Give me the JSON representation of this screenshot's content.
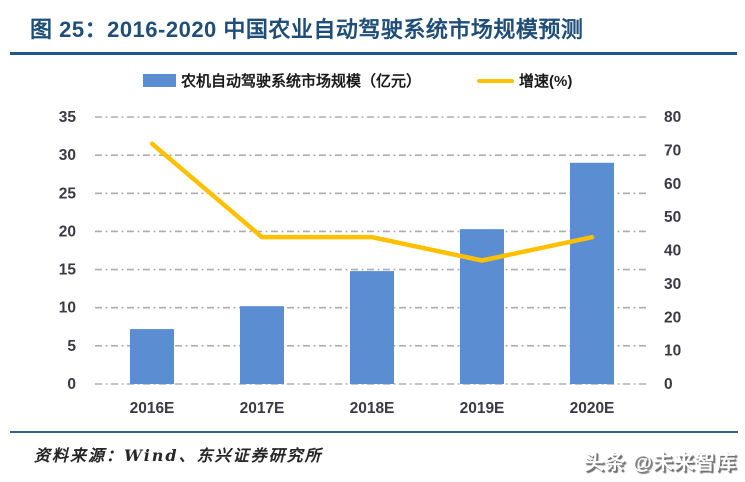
{
  "header": {
    "title": "图 25：2016-2020 中国农业自动驾驶系统市场规模预测"
  },
  "legend": {
    "series1_label": "农机自动驾驶系统市场规模（亿元）",
    "series2_label": "增速(%)"
  },
  "chart_data": {
    "type": "bar",
    "subtype": "bar+line combo, dual axis",
    "categories": [
      "2016E",
      "2017E",
      "2018E",
      "2019E",
      "2020E"
    ],
    "series": [
      {
        "name": "农机自动驾驶系统市场规模（亿元）",
        "type": "bar",
        "axis": "left",
        "color": "#5B8DD3",
        "values": [
          7.2,
          10.2,
          14.8,
          20.3,
          29.0
        ]
      },
      {
        "name": "增速(%)",
        "type": "line",
        "axis": "right",
        "color": "#FFC000",
        "values": [
          72,
          44,
          44,
          37,
          44
        ]
      }
    ],
    "left_axis": {
      "min": 0,
      "max": 35,
      "step": 5,
      "ticks": [
        0,
        5,
        10,
        15,
        20,
        25,
        30,
        35
      ]
    },
    "right_axis": {
      "min": 0,
      "max": 80,
      "step": 10,
      "ticks": [
        0,
        10,
        20,
        30,
        40,
        50,
        60,
        70,
        80
      ]
    },
    "grid": "horizontal dash-dot gray lines",
    "legend_position": "top",
    "title": "2016-2020 中国农业自动驾驶系统市场规模预测",
    "xlabel": "",
    "ylabel_left": "亿元",
    "ylabel_right": "%"
  },
  "footer": {
    "source": "资料来源：Wind、东兴证券研究所",
    "watermark": "头条 @未来智库"
  },
  "colors": {
    "title": "#1F4E79",
    "bar": "#5B8DD3",
    "line": "#FFC000",
    "grid": "#ADADAD",
    "tick_text": "#3A3A44",
    "title_rule": "#24568C",
    "footer_rule": "#35618F"
  }
}
